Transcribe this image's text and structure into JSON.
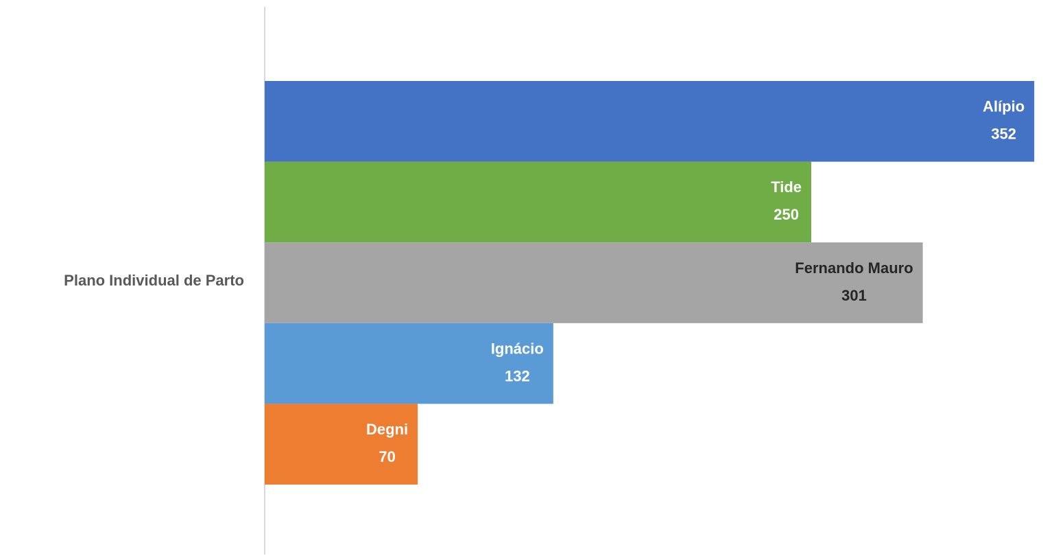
{
  "chart_data": {
    "type": "bar",
    "orientation": "horizontal",
    "categories": [
      "Plano Individual de Parto"
    ],
    "series": [
      {
        "name": "Alípio",
        "color": "#4472c4",
        "label_color": "#ffffff",
        "values": [
          352
        ]
      },
      {
        "name": "Tide",
        "color": "#70ad47",
        "label_color": "#ffffff",
        "values": [
          250
        ]
      },
      {
        "name": "Fernando Mauro",
        "color": "#a5a5a5",
        "label_color": "#262626",
        "values": [
          301
        ]
      },
      {
        "name": "Ignácio",
        "color": "#5b9bd5",
        "label_color": "#ffffff",
        "values": [
          132
        ]
      },
      {
        "name": "Degni",
        "color": "#ed7d31",
        "label_color": "#ffffff",
        "values": [
          70
        ]
      }
    ],
    "xlim": [
      0,
      356
    ]
  }
}
